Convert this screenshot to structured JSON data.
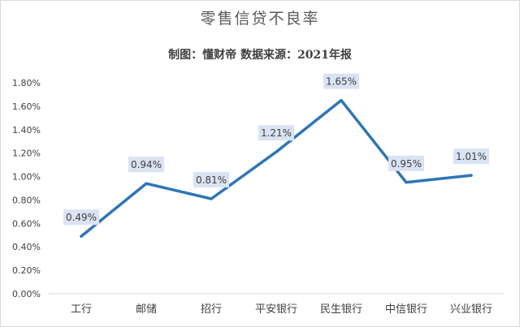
{
  "chart_data": {
    "type": "line",
    "title": "零售信贷不良率",
    "subtitle": "制图：懂财帝   数据来源：2021年报",
    "categories": [
      "工行",
      "邮储",
      "招行",
      "平安银行",
      "民生银行",
      "中信银行",
      "兴业银行"
    ],
    "series": [
      {
        "values": [
          0.49,
          0.94,
          0.81,
          1.21,
          1.65,
          0.95,
          1.01
        ],
        "data_labels": [
          "0.49%",
          "0.94%",
          "0.81%",
          "1.21%",
          "1.65%",
          "0.95%",
          "1.01%"
        ]
      }
    ],
    "yticks": [
      "0.00%",
      "0.20%",
      "0.40%",
      "0.60%",
      "0.80%",
      "1.00%",
      "1.20%",
      "1.40%",
      "1.60%",
      "1.80%"
    ],
    "ylim": [
      0,
      1.8
    ],
    "xlabel": "",
    "ylabel": "",
    "legend": "none",
    "grid": false,
    "colors": {
      "line": "#2e75b6",
      "label_bg": "#dae3f3",
      "axis": "#d9d9d9"
    }
  }
}
